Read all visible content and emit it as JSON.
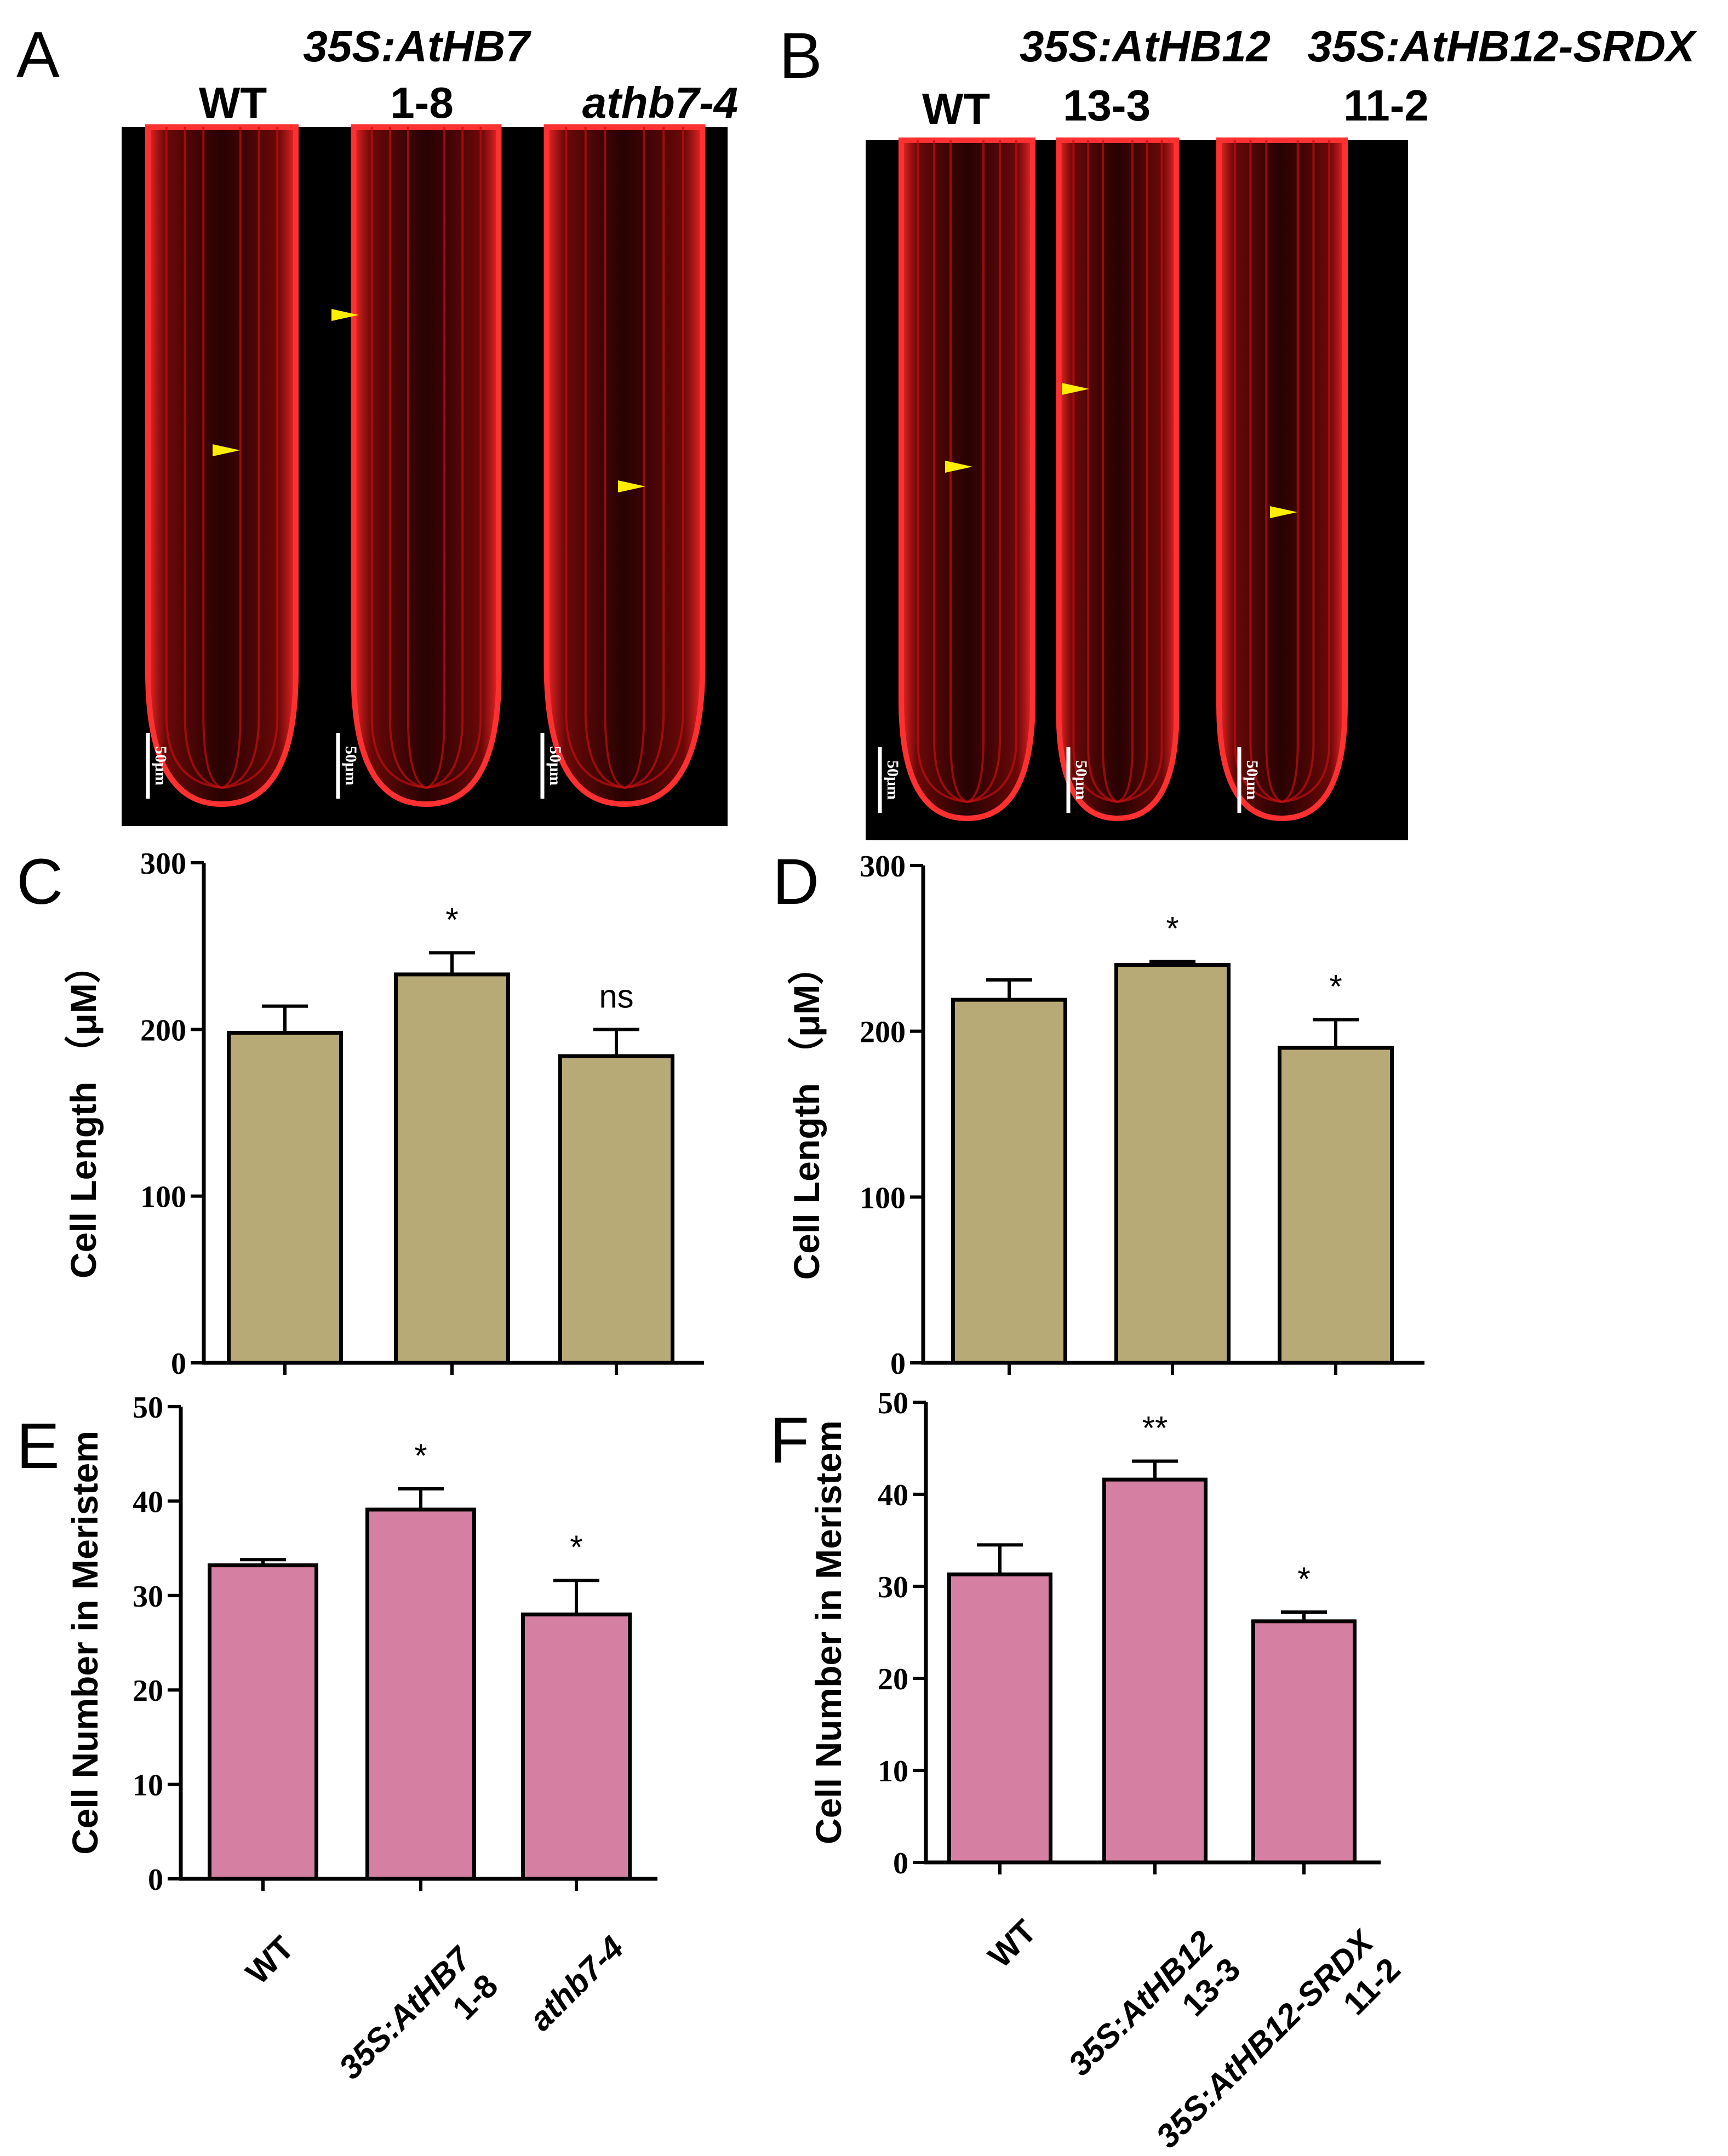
{
  "panels": {
    "A": {
      "letter": "A",
      "header_top": "35S:AtHB7",
      "labels": [
        "WT",
        "1-8",
        "athb7-4"
      ],
      "scale_bar": "50μm"
    },
    "B": {
      "letter": "B",
      "header_top": [
        "35S:AtHB12",
        "35S:AtHB12-SRDX"
      ],
      "labels": [
        "WT",
        "13-3",
        "11-2"
      ],
      "scale_bar": "50μm"
    }
  },
  "chart_data": [
    {
      "panel": "C",
      "type": "bar",
      "ylabel": "Cell Length （μM）",
      "ylim": [
        0,
        300
      ],
      "yticks": [
        "0",
        "100",
        "200",
        "300"
      ],
      "categories": [
        "WT",
        "35S:AtHB7 1-8",
        "athb7-4"
      ],
      "values": [
        198,
        233,
        184
      ],
      "errors": [
        16,
        13,
        16
      ],
      "significance": [
        "",
        "*",
        "ns"
      ],
      "bar_color": "#b8aa76"
    },
    {
      "panel": "D",
      "type": "bar",
      "ylabel": "Cell Length （μM）",
      "ylim": [
        0,
        300
      ],
      "yticks": [
        "0",
        "100",
        "200",
        "300"
      ],
      "categories": [
        "WT",
        "35S:AtHB12 13-3",
        "35S:AtHB12-SRDX 11-2"
      ],
      "values": [
        219,
        240,
        190
      ],
      "errors": [
        12,
        2,
        17
      ],
      "significance": [
        "",
        "*",
        "*"
      ],
      "bar_color": "#b8aa76"
    },
    {
      "panel": "E",
      "type": "bar",
      "ylabel": "Cell Number in Meristem",
      "ylim": [
        0,
        50
      ],
      "yticks": [
        "0",
        "10",
        "20",
        "30",
        "40",
        "50"
      ],
      "categories": [
        "WT",
        "35S:AtHB7 1-8",
        "athb7-4"
      ],
      "category_labels": [
        [
          "WT"
        ],
        [
          "35S:AtHB7",
          "1-8"
        ],
        [
          "athb7-4"
        ]
      ],
      "values": [
        33.2,
        39.1,
        28.0
      ],
      "errors": [
        0.6,
        2.2,
        3.6
      ],
      "significance": [
        "",
        "*",
        "*"
      ],
      "bar_color": "#d580a2"
    },
    {
      "panel": "F",
      "type": "bar",
      "ylabel": "Cell Number in Meristem",
      "ylim": [
        0,
        50
      ],
      "yticks": [
        "0",
        "10",
        "20",
        "30",
        "40",
        "50"
      ],
      "categories": [
        "WT",
        "35S:AtHB12 13-3",
        "35S:AtHB12-SRDX 11-2"
      ],
      "category_labels": [
        [
          "WT"
        ],
        [
          "35S:AtHB12",
          "13-3"
        ],
        [
          "35S:AtHB12-SRDX",
          "11-2"
        ]
      ],
      "values": [
        31.3,
        41.6,
        26.2
      ],
      "errors": [
        3.2,
        2.0,
        1.0
      ],
      "significance": [
        "",
        "**",
        "*"
      ],
      "bar_color": "#d580a2"
    }
  ]
}
